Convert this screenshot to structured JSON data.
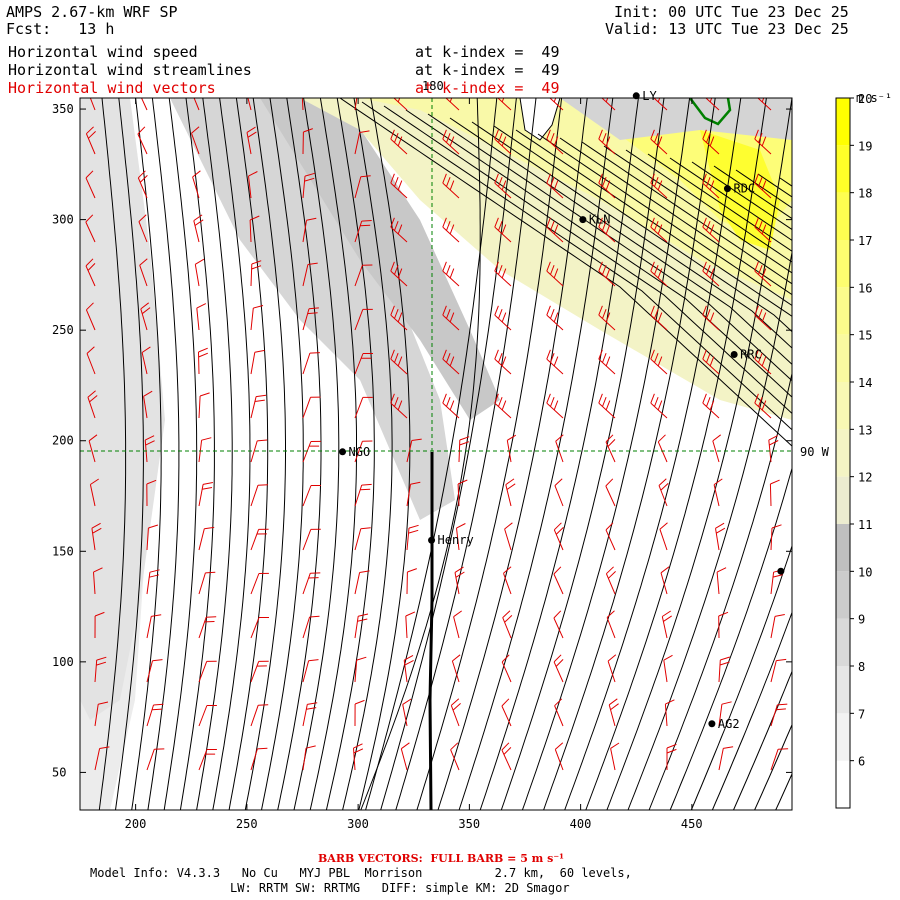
{
  "header": {
    "title": "AMPS 2.67-km WRF SP",
    "fcst": "Fcst:   13 h",
    "init": "Init: 00 UTC Tue 23 Dec 25",
    "valid": "Valid: 13 UTC Tue 23 Dec 25",
    "field1": "Horizontal wind speed",
    "field2": "Horizontal wind streamlines",
    "field3": "Horizontal wind vectors",
    "level1": "at k-index =  49",
    "level2": "at k-index =  49",
    "level3": "at k-index =  49"
  },
  "footer": {
    "barb_note": "BARB VECTORS:  FULL BARB = 5 m s⁻¹",
    "model_info": "Model Info: V4.3.3   No Cu   MYJ PBL  Morrison          2.7 km,  60 levels,",
    "physics": "LW: RRTM SW: RRTMG   DIFF: simple KM: 2D Smagor"
  },
  "map_labels": {
    "lon_180": "180",
    "lat_90w": "90 W",
    "stations": [
      {
        "name": "LY",
        "x": 425,
        "y": 356
      },
      {
        "name": "RDC",
        "x": 466,
        "y": 314
      },
      {
        "name": "KLN",
        "x": 401,
        "y": 300
      },
      {
        "name": "RRC",
        "x": 469,
        "y": 239
      },
      {
        "name": "NGO",
        "x": 293,
        "y": 195
      },
      {
        "name": "Henry",
        "x": 333,
        "y": 155
      },
      {
        "name": "AG2",
        "x": 459,
        "y": 72
      },
      {
        "name": "",
        "x": 490,
        "y": 141
      }
    ]
  },
  "colors": {
    "streamline": "#000000",
    "barb": "#e00000",
    "grid": "#008000",
    "coast": "#008000"
  },
  "chart_data": {
    "type": "heatmap",
    "title": "Horizontal wind speed / streamlines / vectors at k-index = 49",
    "x_axis": {
      "range": [
        175,
        495
      ],
      "ticks": [
        200,
        250,
        300,
        350,
        400,
        450
      ]
    },
    "y_axis": {
      "range": [
        33,
        355
      ],
      "ticks": [
        50,
        100,
        150,
        200,
        250,
        300,
        350
      ]
    },
    "colorbar": {
      "unit": "m s⁻¹",
      "levels": [
        6,
        7,
        8,
        9,
        10,
        11,
        12,
        13,
        14,
        15,
        16,
        17,
        18,
        19,
        20
      ],
      "colors": [
        "#ffffff",
        "#f2f2f2",
        "#e6e6e6",
        "#d9d9d9",
        "#cccccc",
        "#bfbfbf",
        "#ececd0",
        "#f4f4c4",
        "#f8f8b4",
        "#fafaa0",
        "#fcfc8c",
        "#fdfd70",
        "#fefe50",
        "#ffff28",
        "#ffff00"
      ]
    }
  }
}
